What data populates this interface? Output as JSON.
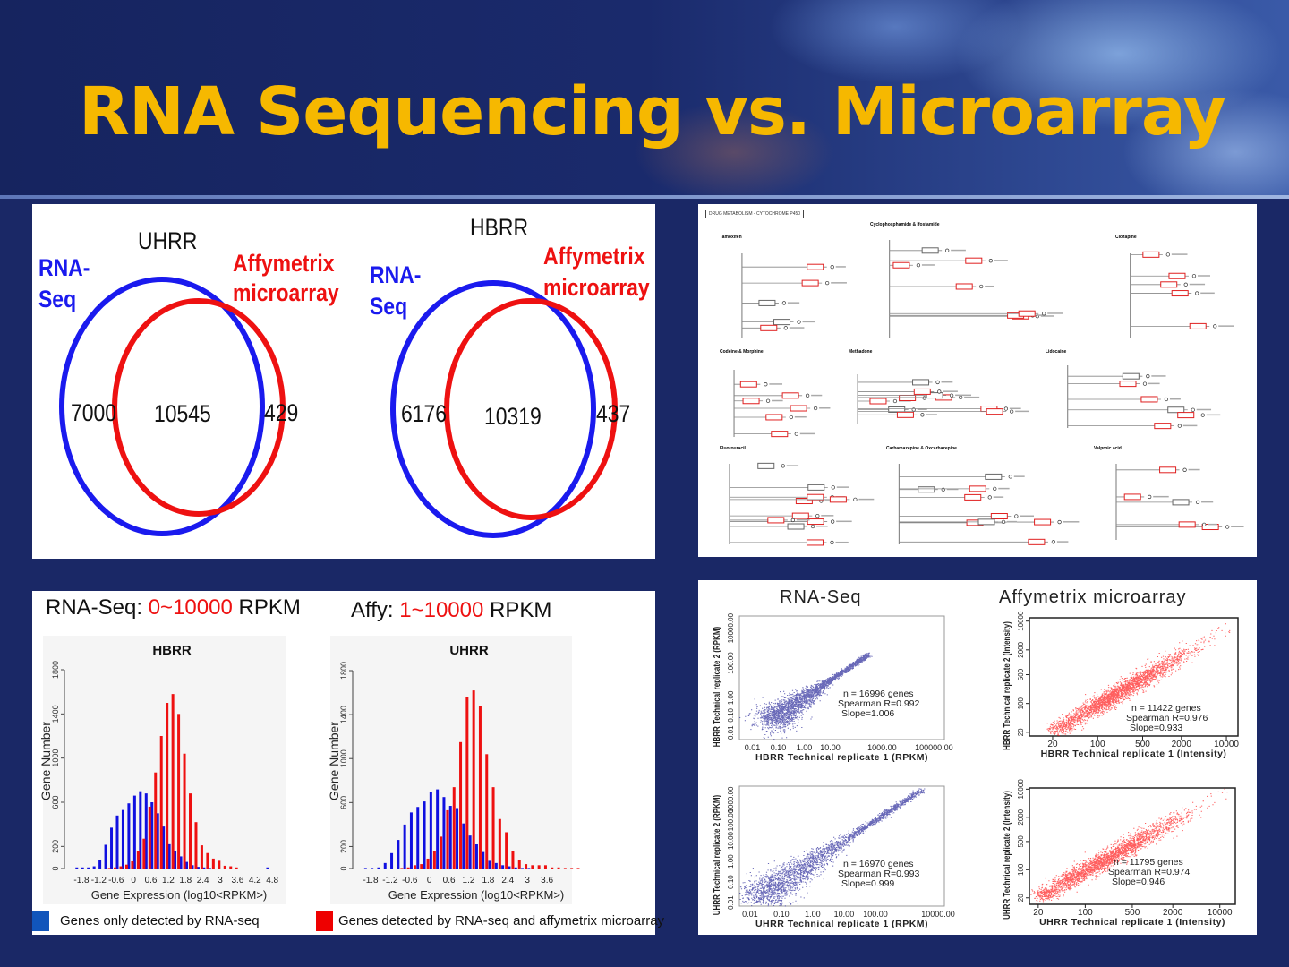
{
  "slide": {
    "title": "RNA Sequencing vs. Microarray"
  },
  "colors": {
    "title": "#f6b800",
    "rnaseq": "#1a1aee",
    "affy": "#ee1111",
    "blue_bar": "#1010e0",
    "red_bar": "#ee1010",
    "scatter_blue": "#2a2a9a",
    "scatter_red": "#ff1a1a",
    "legend_blue": "#1155bb"
  },
  "pathway": {
    "title": "DRUG METABOLISM - CYTOCHROME P450",
    "sections": [
      "Tamoxifen",
      "Cyclophosphamide & Ifosfamide",
      "Clozapine",
      "Codeine & Morphine",
      "Methadone",
      "Lidocaine",
      "Fluorouracil",
      "Carbamazepine & Oxcarbazepine",
      "Valproic acid"
    ]
  },
  "histogram_panel": {
    "left_title": {
      "prefix": "RNA-Seq: ",
      "range": "0~10000",
      "suffix": " RPKM"
    },
    "right_title": {
      "prefix": "Affy: ",
      "range": "1~10000",
      "suffix": " RPKM"
    },
    "legend": [
      "Genes only detected by RNA-seq",
      "Genes detected by RNA-seq and affymetrix microarray"
    ]
  },
  "scatter_panel": {
    "headers": [
      "RNA-Seq",
      "Affymetrix microarray"
    ]
  },
  "chart_data": [
    {
      "type": "venn",
      "title": "UHRR",
      "sets": [
        {
          "name": "RNA-Seq",
          "label_lines": [
            "RNA-",
            "Seq"
          ],
          "only": "7000"
        },
        {
          "name": "Affymetrix microarray",
          "label_lines": [
            "Affymetrix",
            "microarray"
          ],
          "only": "429"
        }
      ],
      "intersection": "10545"
    },
    {
      "type": "venn",
      "title": "HBRR",
      "sets": [
        {
          "name": "RNA-Seq",
          "label_lines": [
            "RNA-",
            "Seq"
          ],
          "only": "6176"
        },
        {
          "name": "Affymetrix microarray",
          "label_lines": [
            "Affymetrix",
            "microarray"
          ],
          "only": "437"
        }
      ],
      "intersection": "10319"
    },
    {
      "type": "bar",
      "title": "HBRR",
      "xlabel": "Gene Expression (log10<RPKM>)",
      "ylabel": "Gene Number",
      "ylim": [
        0,
        1800
      ],
      "yticks": [
        "0",
        "200",
        "600",
        "1000",
        "1400",
        "1800"
      ],
      "xticks": [
        "-1.8",
        "-1.2",
        "-0.6",
        "0",
        "0.6",
        "1.2",
        "1.8",
        "2.4",
        "3",
        "3.6",
        "4.2",
        "4.8"
      ],
      "bin_width": 0.2,
      "x": [
        -1.9,
        -1.7,
        -1.5,
        -1.3,
        -1.1,
        -0.9,
        -0.7,
        -0.5,
        -0.3,
        -0.1,
        0.1,
        0.3,
        0.5,
        0.7,
        0.9,
        1.1,
        1.3,
        1.5,
        1.7,
        1.9,
        2.1,
        2.3,
        2.5,
        2.7,
        2.9,
        3.1,
        3.3,
        3.5,
        3.7,
        3.9,
        4.1,
        4.3,
        4.5,
        4.7
      ],
      "series": [
        {
          "name": "Genes only detected by RNA-seq",
          "values": [
            10,
            10,
            10,
            20,
            80,
            215,
            370,
            480,
            530,
            590,
            660,
            700,
            680,
            600,
            500,
            380,
            220,
            160,
            110,
            60,
            30,
            15,
            10,
            5,
            0,
            0,
            0,
            0,
            0,
            0,
            0,
            0,
            0,
            10
          ]
        },
        {
          "name": "Genes detected by RNA-seq and affymetrix microarray",
          "values": [
            0,
            0,
            0,
            0,
            0,
            5,
            10,
            20,
            35,
            65,
            160,
            270,
            560,
            870,
            1200,
            1500,
            1580,
            1400,
            1040,
            680,
            420,
            210,
            140,
            90,
            70,
            25,
            20,
            10,
            0,
            0,
            0,
            0,
            0,
            0
          ]
        }
      ]
    },
    {
      "type": "bar",
      "title": "UHRR",
      "xlabel": "Gene Expression (log10<RPKM>)",
      "ylabel": "Gene Number",
      "ylim": [
        0,
        1800
      ],
      "yticks": [
        "0",
        "200",
        "600",
        "1000",
        "1400",
        "1800"
      ],
      "xticks": [
        "-1.8",
        "-1.2",
        "-0.6",
        "0",
        "0.6",
        "1.2",
        "1.8",
        "2.4",
        "3",
        "3.6"
      ],
      "bin_width": 0.2,
      "x": [
        -1.9,
        -1.7,
        -1.5,
        -1.3,
        -1.1,
        -0.9,
        -0.7,
        -0.5,
        -0.3,
        -0.1,
        0.1,
        0.3,
        0.5,
        0.7,
        0.9,
        1.1,
        1.3,
        1.5,
        1.7,
        1.9,
        2.1,
        2.3,
        2.5,
        2.7,
        2.9,
        3.1,
        3.3,
        3.5,
        3.7,
        3.9,
        4.1,
        4.3,
        4.5,
        4.7
      ],
      "series": [
        {
          "name": "Genes only detected by RNA-seq",
          "values": [
            5,
            5,
            10,
            50,
            140,
            260,
            400,
            510,
            560,
            610,
            700,
            720,
            650,
            570,
            550,
            410,
            300,
            220,
            150,
            70,
            50,
            30,
            20,
            10,
            5,
            5,
            0,
            0,
            0,
            0,
            0,
            0,
            0,
            0
          ]
        },
        {
          "name": "Genes detected by RNA-seq and affymetrix microarray",
          "values": [
            0,
            0,
            0,
            0,
            0,
            5,
            10,
            30,
            40,
            90,
            160,
            290,
            530,
            740,
            1150,
            1560,
            1620,
            1480,
            1040,
            740,
            450,
            330,
            160,
            80,
            40,
            30,
            30,
            30,
            10,
            10,
            5,
            5,
            5,
            0
          ]
        }
      ]
    },
    {
      "type": "scatter",
      "scale": "log",
      "xlabel": "HBRR Technical replicate 1 (RPKM)",
      "ylabel": "HBRR Technical replicate 2 (RPKM)",
      "xticks": [
        "0.01",
        "0.10",
        "1.00",
        "10.00",
        "1000.00",
        "100000.00"
      ],
      "yticks": [
        "0.01",
        "0.10",
        "1.00",
        "100.00",
        "10000.00"
      ],
      "n_label": "n = 16996 genes",
      "spearman_label": "Spearman R=0.992",
      "slope_label": "Slope=1.006",
      "n": 16996,
      "spearman": 0.992,
      "slope": 1.006,
      "data_range": [
        0.05,
        300
      ]
    },
    {
      "type": "scatter",
      "scale": "log",
      "xlabel": "HBRR Technical replicate 1 (Intensity)",
      "ylabel": "HBRR Technical replicate 2 (Intensity)",
      "xticks": [
        "20",
        "100",
        "500",
        "2000",
        "10000"
      ],
      "yticks": [
        "20",
        "100",
        "500",
        "2000",
        "10000"
      ],
      "n_label": "n = 11422 genes",
      "spearman_label": "Spearman R=0.976",
      "slope_label": "Slope=0.933",
      "n": 11422,
      "spearman": 0.976,
      "slope": 0.933,
      "data_range": [
        25,
        9000
      ]
    },
    {
      "type": "scatter",
      "scale": "log",
      "xlabel": "UHRR Technical replicate 1 (RPKM)",
      "ylabel": "UHRR Technical replicate 2 (RPKM)",
      "xticks": [
        "0.01",
        "0.10",
        "1.00",
        "10.00",
        "100.00",
        "10000.00"
      ],
      "yticks": [
        "0.01",
        "0.10",
        "1.00",
        "10.00",
        "100.00",
        "1000.00"
      ],
      "n_label": "n = 16970 genes",
      "spearman_label": "Spearman R=0.993",
      "slope_label": "Slope=0.999",
      "n": 16970,
      "spearman": 0.993,
      "slope": 0.999,
      "data_range": [
        0.02,
        3000
      ]
    },
    {
      "type": "scatter",
      "scale": "log",
      "xlabel": "UHRR Technical replicate 1 (Intensity)",
      "ylabel": "UHRR Technical replicate 2 (Intensity)",
      "xticks": [
        "20",
        "100",
        "500",
        "2000",
        "10000"
      ],
      "yticks": [
        "20",
        "100",
        "500",
        "2000",
        "10000"
      ],
      "n_label": "n = 11795 genes",
      "spearman_label": "Spearman R=0.974",
      "slope_label": "Slope=0.946",
      "n": 11795,
      "spearman": 0.974,
      "slope": 0.946,
      "data_range": [
        25,
        9000
      ]
    }
  ]
}
